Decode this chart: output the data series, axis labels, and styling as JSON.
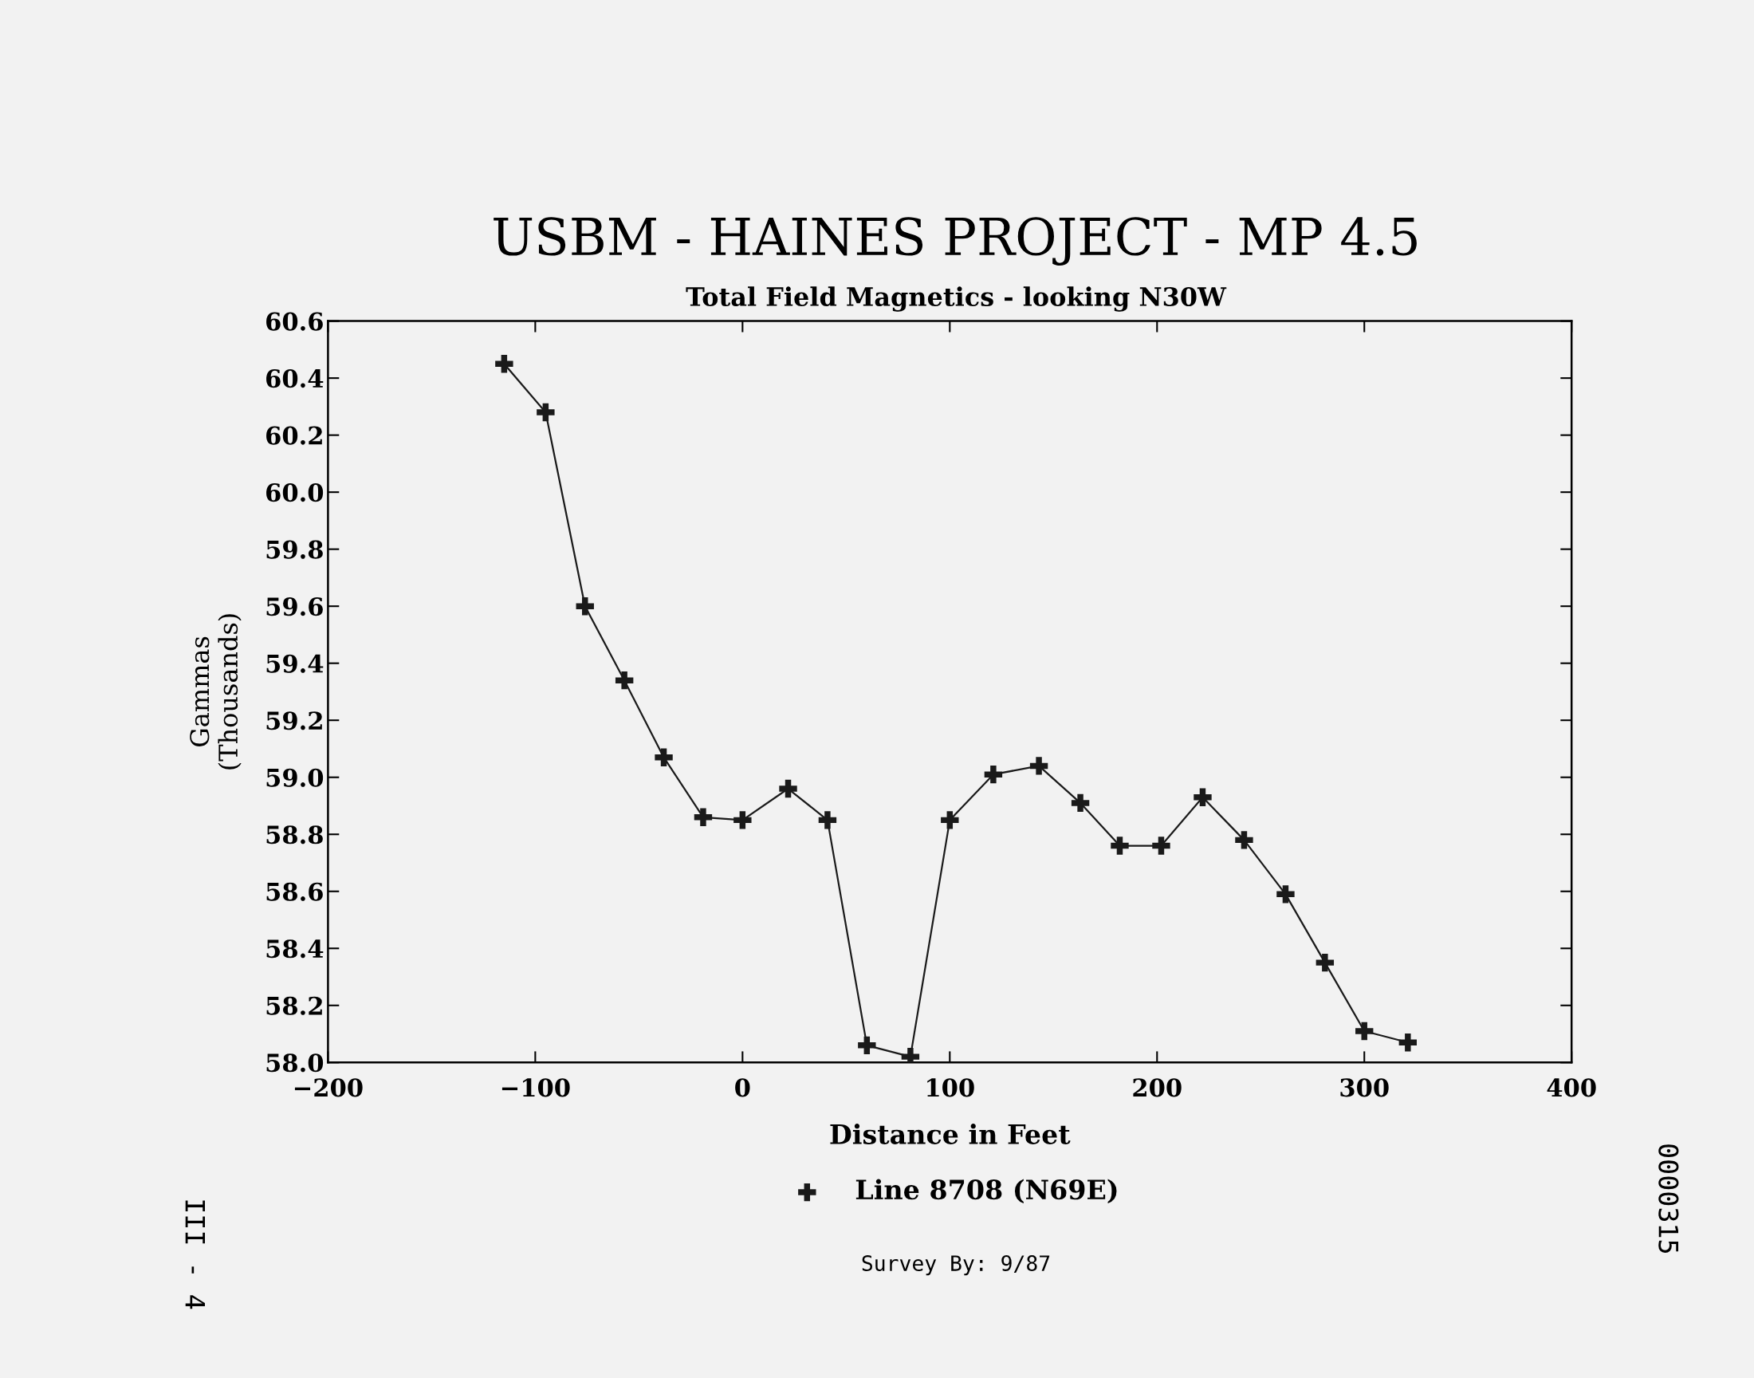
{
  "chart_data": {
    "type": "line",
    "title": "USBM - HAINES PROJECT - MP 4.5",
    "subtitle": "Total Field Magnetics - looking N30W",
    "xlabel": "Distance in Feet",
    "ylabel": "Gammas\n(Thousands)",
    "x": [
      -115,
      -95,
      -76,
      -57,
      -38,
      -19,
      0,
      22,
      41,
      60,
      81,
      100,
      121,
      143,
      163,
      182,
      202,
      222,
      242,
      262,
      281,
      300,
      321
    ],
    "series": [
      {
        "name": "Line 8708 (N69E)",
        "color": "#1a1a1a",
        "values": [
          60.45,
          60.28,
          59.6,
          59.34,
          59.07,
          58.86,
          58.85,
          58.96,
          58.85,
          58.06,
          58.02,
          58.85,
          59.01,
          59.04,
          58.91,
          58.76,
          58.76,
          58.93,
          58.78,
          58.59,
          58.35,
          58.11,
          58.07
        ]
      }
    ],
    "xlim": [
      -200,
      400
    ],
    "xticks": [
      {
        "value": -200,
        "label": "−200"
      },
      {
        "value": -100,
        "label": "−100"
      },
      0,
      100,
      200,
      300,
      400
    ],
    "ylim": [
      58.0,
      60.6
    ],
    "yticks": [
      {
        "value": 58.0,
        "label": "58.0"
      },
      {
        "value": 58.2,
        "label": "58.2"
      },
      {
        "value": 58.4,
        "label": "58.4"
      },
      {
        "value": 58.6,
        "label": "58.6"
      },
      {
        "value": 58.8,
        "label": "58.8"
      },
      {
        "value": 59.0,
        "label": "59.0"
      },
      {
        "value": 59.2,
        "label": "59.2"
      },
      {
        "value": 59.4,
        "label": "59.4"
      },
      {
        "value": 59.6,
        "label": "59.6"
      },
      {
        "value": 59.8,
        "label": "59.8"
      },
      {
        "value": 60.0,
        "label": "60.0"
      },
      {
        "value": 60.2,
        "label": "60.2"
      },
      {
        "value": 60.4,
        "label": "60.4"
      },
      {
        "value": 60.6,
        "label": "60.6"
      }
    ],
    "marker": "cross",
    "line_style": "solid",
    "grid": false,
    "legend": "bottom",
    "annotations": [
      "Survey By: 9/87",
      "III - 4",
      "0000315"
    ]
  }
}
